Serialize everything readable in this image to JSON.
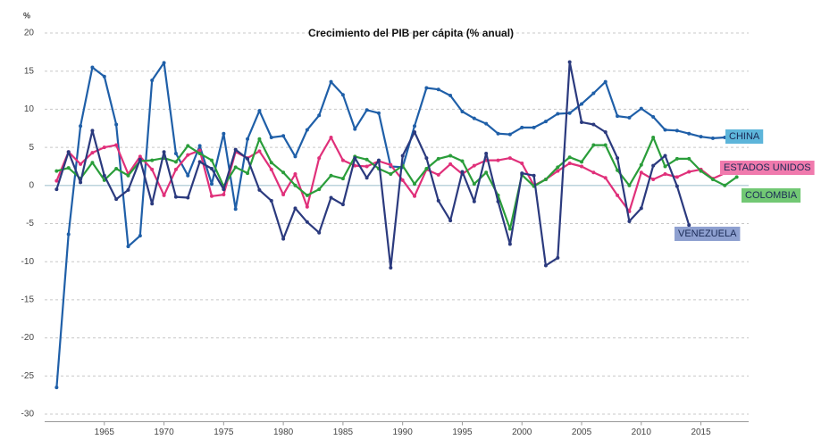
{
  "chart_data": {
    "type": "line",
    "title": "Crecimiento del PIB per cápita (% anual)",
    "y_label": "%",
    "x": [
      1961,
      1962,
      1963,
      1964,
      1965,
      1966,
      1967,
      1968,
      1969,
      1970,
      1971,
      1972,
      1973,
      1974,
      1975,
      1976,
      1977,
      1978,
      1979,
      1980,
      1981,
      1982,
      1983,
      1984,
      1985,
      1986,
      1987,
      1988,
      1989,
      1990,
      1991,
      1992,
      1993,
      1994,
      1995,
      1996,
      1997,
      1998,
      1999,
      2000,
      2001,
      2002,
      2003,
      2004,
      2005,
      2006,
      2007,
      2008,
      2009,
      2010,
      2011,
      2012,
      2013,
      2014,
      2015,
      2016,
      2017,
      2018
    ],
    "series": [
      {
        "name": "CHINA",
        "color": "#1f5fa8",
        "label_color": "#5db5da",
        "values": [
          -26.5,
          -6.4,
          7.8,
          15.5,
          14.3,
          8.0,
          -8.0,
          -6.6,
          13.8,
          16.1,
          4.2,
          1.3,
          5.2,
          0.2,
          6.8,
          -3.1,
          6.1,
          9.8,
          6.3,
          6.5,
          3.8,
          7.3,
          9.2,
          13.6,
          11.9,
          7.4,
          9.9,
          9.5,
          2.5,
          2.4,
          7.8,
          12.8,
          12.6,
          11.8,
          9.7,
          8.8,
          8.1,
          6.8,
          6.7,
          7.6,
          7.6,
          8.4,
          9.4,
          9.5,
          10.7,
          12.1,
          13.6,
          9.1,
          8.9,
          10.1,
          9.0,
          7.3,
          7.2,
          6.8,
          6.4,
          6.2,
          6.3,
          6.2
        ]
      },
      {
        "name": "ESTADOS UNIDOS",
        "color": "#e0307a",
        "label_color": "#f07aad",
        "values": [
          0.6,
          4.4,
          2.8,
          4.3,
          5.0,
          5.3,
          1.5,
          3.8,
          2.1,
          -1.3,
          2.1,
          4.0,
          4.6,
          -1.4,
          -1.2,
          4.4,
          3.6,
          4.5,
          2.1,
          -1.2,
          1.5,
          -2.8,
          3.6,
          6.3,
          3.3,
          2.6,
          2.5,
          3.2,
          2.7,
          0.7,
          -1.4,
          2.1,
          1.4,
          2.8,
          1.5,
          2.6,
          3.3,
          3.3,
          3.6,
          2.9,
          0.0,
          0.8,
          1.9,
          2.9,
          2.5,
          1.7,
          1.0,
          -1.3,
          -3.4,
          1.7,
          0.8,
          1.5,
          1.1,
          1.8,
          2.1,
          0.9,
          1.6,
          2.3
        ]
      },
      {
        "name": "COLOMBIA",
        "color": "#2a9d3a",
        "label_color": "#72c874",
        "values": [
          1.9,
          2.3,
          0.9,
          3.0,
          0.7,
          2.2,
          1.3,
          3.2,
          3.3,
          3.6,
          3.1,
          5.2,
          4.2,
          3.3,
          -0.1,
          2.4,
          1.6,
          6.1,
          3.0,
          1.7,
          0.0,
          -1.3,
          -0.5,
          1.3,
          0.9,
          3.8,
          3.4,
          2.2,
          1.5,
          2.6,
          0.2,
          2.2,
          3.5,
          3.9,
          3.2,
          0.2,
          1.7,
          -1.3,
          -5.7,
          1.4,
          -0.1,
          0.8,
          2.4,
          3.7,
          3.1,
          5.3,
          5.3,
          2.0,
          0.0,
          2.7,
          6.3,
          2.5,
          3.5,
          3.5,
          1.9,
          0.8,
          0.0,
          1.1
        ]
      },
      {
        "name": "VENEZUELA",
        "color": "#2b3a7e",
        "label_color": "#8ea0d0",
        "values": [
          -0.5,
          4.4,
          0.4,
          7.2,
          1.3,
          -1.8,
          -0.6,
          3.4,
          -2.4,
          4.4,
          -1.5,
          -1.6,
          3.1,
          2.2,
          -0.5,
          4.7,
          3.5,
          -0.6,
          -2.0,
          -7.0,
          -3.0,
          -4.8,
          -6.2,
          -1.6,
          -2.5,
          3.6,
          1.0,
          3.3,
          -10.8,
          3.9,
          7.0,
          3.6,
          -2.0,
          -4.6,
          1.8,
          -2.1,
          4.2,
          -2.1,
          -7.7,
          1.6,
          1.3,
          -10.5,
          -9.5,
          16.2,
          8.3,
          8.0,
          7.0,
          3.6,
          -4.7,
          -3.0,
          2.6,
          3.9,
          -0.1,
          -5.2,
          null,
          null,
          null,
          null
        ]
      }
    ],
    "xlim": [
      1960,
      2019
    ],
    "xticks": [
      1965,
      1970,
      1975,
      1980,
      1985,
      1990,
      1995,
      2000,
      2005,
      2010,
      2015
    ],
    "ylim": [
      -31,
      21
    ],
    "yticks": [
      -30,
      -25,
      -20,
      -15,
      -10,
      -5,
      0,
      5,
      10,
      15,
      20
    ],
    "grid": true
  }
}
